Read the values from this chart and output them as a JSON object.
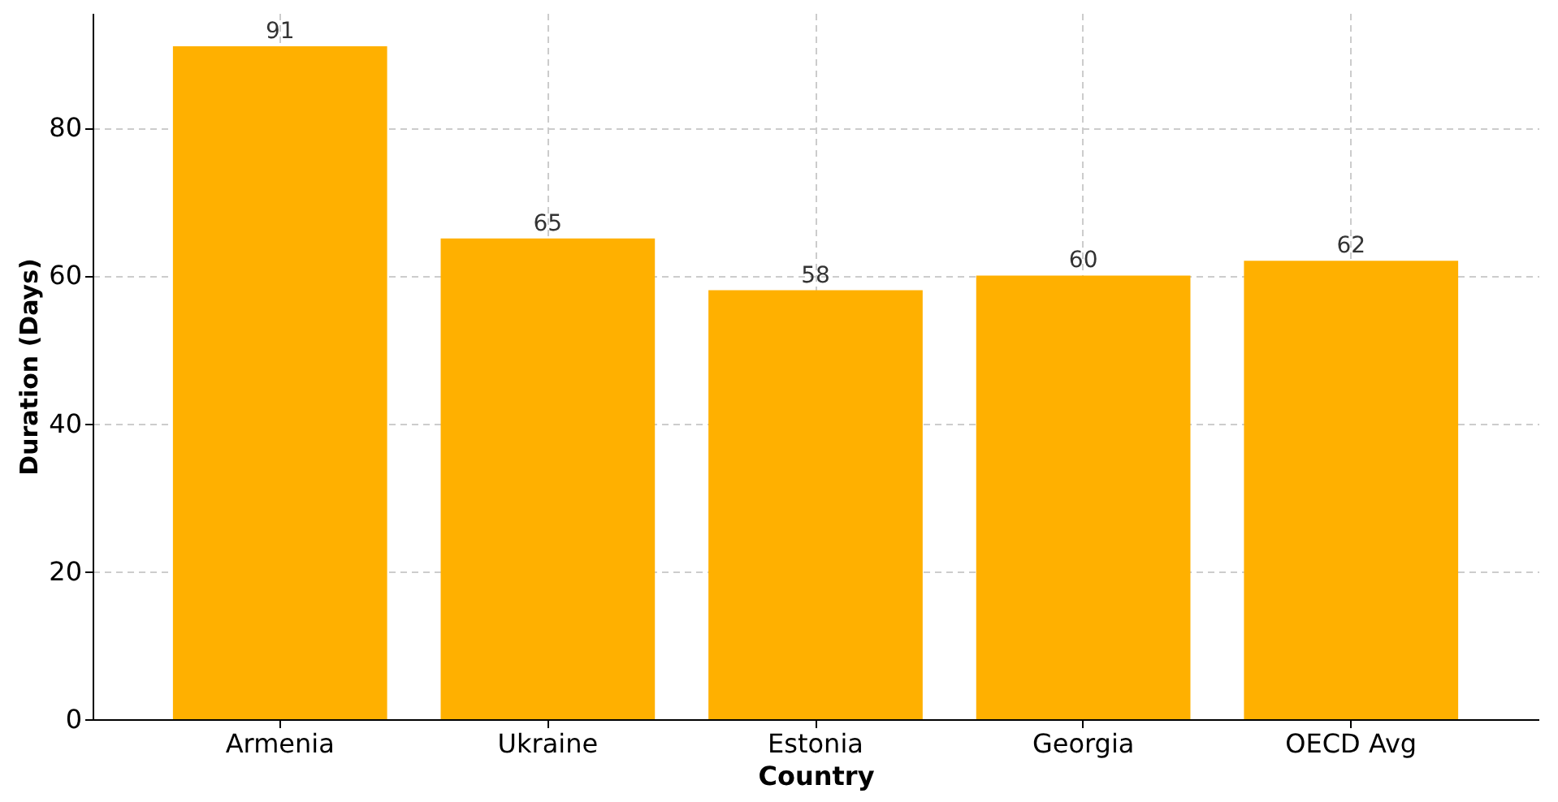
{
  "chart_data": {
    "type": "bar",
    "xlabel": "Country",
    "ylabel": "Duration (Days)",
    "categories": [
      "Armenia",
      "Ukraine",
      "Estonia",
      "Georgia",
      "OECD Avg"
    ],
    "values": [
      91,
      65,
      58,
      60,
      62
    ],
    "color": "#ffb000",
    "ylim": [
      0,
      95.5
    ],
    "yticks": [
      0,
      20,
      40,
      60,
      80
    ],
    "grid": true,
    "data_labels": true
  }
}
